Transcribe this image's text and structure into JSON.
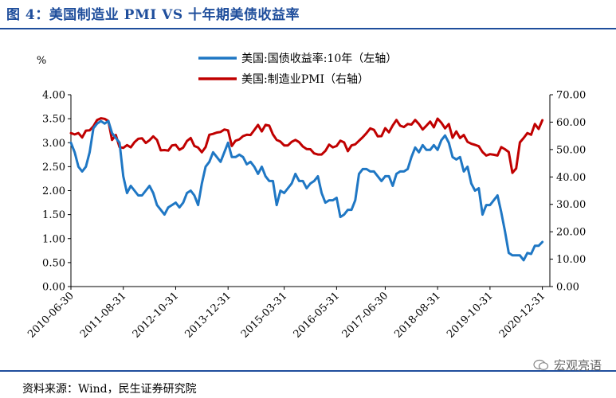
{
  "title": "图 4：美国制造业 PMI VS 十年期美债收益率",
  "source": "资料来源：Wind，民生证券研究院",
  "watermark": "宏观亮语",
  "chart_data": {
    "type": "line",
    "ylabel_left": "%",
    "left_axis": {
      "min": 0,
      "max": 4,
      "ticks": [
        "0.00",
        "0.50",
        "1.00",
        "1.50",
        "2.00",
        "2.50",
        "3.00",
        "3.50",
        "4.00"
      ]
    },
    "right_axis": {
      "min": 0,
      "max": 70,
      "ticks": [
        "0.00",
        "10.00",
        "20.00",
        "30.00",
        "40.00",
        "50.00",
        "60.00",
        "70.00"
      ]
    },
    "x_range": [
      "2010-06",
      "2021-02"
    ],
    "x_ticks": [
      "2010-06-30",
      "2011-08-31",
      "2012-10-31",
      "2013-12-31",
      "2015-03-31",
      "2016-05-31",
      "2017-06-30",
      "2018-08-31",
      "2019-10-31",
      "2020-12-31"
    ],
    "legend_position": "top-center",
    "series": [
      {
        "name": "美国:国债收益率:10年（左轴）",
        "axis": "left",
        "color": "#1f77c4",
        "points": [
          [
            "2010-06",
            3.0
          ],
          [
            "2010-07",
            2.8
          ],
          [
            "2010-08",
            2.5
          ],
          [
            "2010-09",
            2.4
          ],
          [
            "2010-10",
            2.5
          ],
          [
            "2010-11",
            2.8
          ],
          [
            "2010-12",
            3.3
          ],
          [
            "2011-01",
            3.4
          ],
          [
            "2011-02",
            3.45
          ],
          [
            "2011-03",
            3.4
          ],
          [
            "2011-04",
            3.45
          ],
          [
            "2011-05",
            3.2
          ],
          [
            "2011-06",
            3.1
          ],
          [
            "2011-07",
            3.0
          ],
          [
            "2011-08",
            2.3
          ],
          [
            "2011-09",
            1.95
          ],
          [
            "2011-10",
            2.1
          ],
          [
            "2011-11",
            2.0
          ],
          [
            "2011-12",
            1.9
          ],
          [
            "2012-01",
            1.9
          ],
          [
            "2012-02",
            2.0
          ],
          [
            "2012-03",
            2.1
          ],
          [
            "2012-04",
            1.95
          ],
          [
            "2012-05",
            1.7
          ],
          [
            "2012-06",
            1.6
          ],
          [
            "2012-07",
            1.5
          ],
          [
            "2012-08",
            1.65
          ],
          [
            "2012-09",
            1.7
          ],
          [
            "2012-10",
            1.75
          ],
          [
            "2012-11",
            1.65
          ],
          [
            "2012-12",
            1.75
          ],
          [
            "2013-01",
            1.95
          ],
          [
            "2013-02",
            2.0
          ],
          [
            "2013-03",
            1.9
          ],
          [
            "2013-04",
            1.7
          ],
          [
            "2013-05",
            2.15
          ],
          [
            "2013-06",
            2.5
          ],
          [
            "2013-07",
            2.6
          ],
          [
            "2013-08",
            2.8
          ],
          [
            "2013-09",
            2.7
          ],
          [
            "2013-10",
            2.6
          ],
          [
            "2013-11",
            2.8
          ],
          [
            "2013-12",
            3.0
          ],
          [
            "2014-01",
            2.7
          ],
          [
            "2014-02",
            2.7
          ],
          [
            "2014-03",
            2.75
          ],
          [
            "2014-04",
            2.7
          ],
          [
            "2014-05",
            2.55
          ],
          [
            "2014-06",
            2.6
          ],
          [
            "2014-07",
            2.5
          ],
          [
            "2014-08",
            2.35
          ],
          [
            "2014-09",
            2.5
          ],
          [
            "2014-10",
            2.3
          ],
          [
            "2014-11",
            2.2
          ],
          [
            "2014-12",
            2.2
          ],
          [
            "2015-01",
            1.7
          ],
          [
            "2015-02",
            2.0
          ],
          [
            "2015-03",
            1.95
          ],
          [
            "2015-04",
            2.05
          ],
          [
            "2015-05",
            2.15
          ],
          [
            "2015-06",
            2.35
          ],
          [
            "2015-07",
            2.2
          ],
          [
            "2015-08",
            2.2
          ],
          [
            "2015-09",
            2.05
          ],
          [
            "2015-10",
            2.15
          ],
          [
            "2015-11",
            2.2
          ],
          [
            "2015-12",
            2.3
          ],
          [
            "2016-01",
            1.95
          ],
          [
            "2016-02",
            1.75
          ],
          [
            "2016-03",
            1.8
          ],
          [
            "2016-04",
            1.8
          ],
          [
            "2016-05",
            1.85
          ],
          [
            "2016-06",
            1.45
          ],
          [
            "2016-07",
            1.5
          ],
          [
            "2016-08",
            1.6
          ],
          [
            "2016-09",
            1.6
          ],
          [
            "2016-10",
            1.8
          ],
          [
            "2016-11",
            2.35
          ],
          [
            "2016-12",
            2.45
          ],
          [
            "2017-01",
            2.45
          ],
          [
            "2017-02",
            2.4
          ],
          [
            "2017-03",
            2.4
          ],
          [
            "2017-04",
            2.3
          ],
          [
            "2017-05",
            2.2
          ],
          [
            "2017-06",
            2.3
          ],
          [
            "2017-07",
            2.3
          ],
          [
            "2017-08",
            2.1
          ],
          [
            "2017-09",
            2.35
          ],
          [
            "2017-10",
            2.4
          ],
          [
            "2017-11",
            2.4
          ],
          [
            "2017-12",
            2.45
          ],
          [
            "2018-01",
            2.7
          ],
          [
            "2018-02",
            2.9
          ],
          [
            "2018-03",
            2.8
          ],
          [
            "2018-04",
            2.95
          ],
          [
            "2018-05",
            2.85
          ],
          [
            "2018-06",
            2.85
          ],
          [
            "2018-07",
            2.95
          ],
          [
            "2018-08",
            2.85
          ],
          [
            "2018-09",
            3.05
          ],
          [
            "2018-10",
            3.15
          ],
          [
            "2018-11",
            3.0
          ],
          [
            "2018-12",
            2.7
          ],
          [
            "2019-01",
            2.65
          ],
          [
            "2019-02",
            2.7
          ],
          [
            "2019-03",
            2.4
          ],
          [
            "2019-04",
            2.5
          ],
          [
            "2019-05",
            2.15
          ],
          [
            "2019-06",
            2.0
          ],
          [
            "2019-07",
            2.05
          ],
          [
            "2019-08",
            1.5
          ],
          [
            "2019-09",
            1.7
          ],
          [
            "2019-10",
            1.7
          ],
          [
            "2019-11",
            1.8
          ],
          [
            "2019-12",
            1.9
          ],
          [
            "2020-01",
            1.55
          ],
          [
            "2020-02",
            1.15
          ],
          [
            "2020-03",
            0.7
          ],
          [
            "2020-04",
            0.65
          ],
          [
            "2020-05",
            0.65
          ],
          [
            "2020-06",
            0.65
          ],
          [
            "2020-07",
            0.55
          ],
          [
            "2020-08",
            0.7
          ],
          [
            "2020-09",
            0.68
          ],
          [
            "2020-10",
            0.85
          ],
          [
            "2020-11",
            0.85
          ],
          [
            "2020-12",
            0.93
          ]
        ]
      },
      {
        "name": "美国:制造业PMI（右轴）",
        "axis": "right",
        "color": "#c00000",
        "points": [
          [
            "2010-06",
            56
          ],
          [
            "2010-07",
            55.5
          ],
          [
            "2010-08",
            56
          ],
          [
            "2010-09",
            54.4
          ],
          [
            "2010-10",
            56.9
          ],
          [
            "2010-11",
            57
          ],
          [
            "2010-12",
            58.5
          ],
          [
            "2011-01",
            60.8
          ],
          [
            "2011-02",
            61.4
          ],
          [
            "2011-03",
            61.2
          ],
          [
            "2011-04",
            60.4
          ],
          [
            "2011-05",
            53.5
          ],
          [
            "2011-06",
            55.3
          ],
          [
            "2011-07",
            50.9
          ],
          [
            "2011-08",
            50.6
          ],
          [
            "2011-09",
            51.6
          ],
          [
            "2011-10",
            50.8
          ],
          [
            "2011-11",
            52.7
          ],
          [
            "2011-12",
            53.9
          ],
          [
            "2012-01",
            54.1
          ],
          [
            "2012-02",
            52.4
          ],
          [
            "2012-03",
            53.4
          ],
          [
            "2012-04",
            54.8
          ],
          [
            "2012-05",
            53.5
          ],
          [
            "2012-06",
            49.7
          ],
          [
            "2012-07",
            49.8
          ],
          [
            "2012-08",
            49.6
          ],
          [
            "2012-09",
            51.5
          ],
          [
            "2012-10",
            51.7
          ],
          [
            "2012-11",
            49.9
          ],
          [
            "2012-12",
            50.7
          ],
          [
            "2013-01",
            53.1
          ],
          [
            "2013-02",
            54.2
          ],
          [
            "2013-03",
            51.3
          ],
          [
            "2013-04",
            50.7
          ],
          [
            "2013-05",
            49
          ],
          [
            "2013-06",
            50.9
          ],
          [
            "2013-07",
            55.4
          ],
          [
            "2013-08",
            55.7
          ],
          [
            "2013-09",
            56.2
          ],
          [
            "2013-10",
            56.4
          ],
          [
            "2013-11",
            57.3
          ],
          [
            "2013-12",
            57
          ],
          [
            "2014-01",
            51.3
          ],
          [
            "2014-02",
            53.2
          ],
          [
            "2014-03",
            53.7
          ],
          [
            "2014-04",
            54.9
          ],
          [
            "2014-05",
            55.4
          ],
          [
            "2014-06",
            55.3
          ],
          [
            "2014-07",
            57.1
          ],
          [
            "2014-08",
            59
          ],
          [
            "2014-09",
            56.6
          ],
          [
            "2014-10",
            59
          ],
          [
            "2014-11",
            58.7
          ],
          [
            "2014-12",
            55.5
          ],
          [
            "2015-01",
            53.5
          ],
          [
            "2015-02",
            52.9
          ],
          [
            "2015-03",
            51.5
          ],
          [
            "2015-04",
            51.5
          ],
          [
            "2015-05",
            52.8
          ],
          [
            "2015-06",
            53.5
          ],
          [
            "2015-07",
            52.7
          ],
          [
            "2015-08",
            51.1
          ],
          [
            "2015-09",
            50.2
          ],
          [
            "2015-10",
            50.1
          ],
          [
            "2015-11",
            48.6
          ],
          [
            "2015-12",
            48.2
          ],
          [
            "2016-01",
            48.2
          ],
          [
            "2016-02",
            49.5
          ],
          [
            "2016-03",
            51.8
          ],
          [
            "2016-04",
            50.8
          ],
          [
            "2016-05",
            51.3
          ],
          [
            "2016-06",
            53.2
          ],
          [
            "2016-07",
            52.6
          ],
          [
            "2016-08",
            49.4
          ],
          [
            "2016-09",
            51.5
          ],
          [
            "2016-10",
            51.9
          ],
          [
            "2016-11",
            53.2
          ],
          [
            "2016-12",
            54.5
          ],
          [
            "2017-01",
            56
          ],
          [
            "2017-02",
            57.7
          ],
          [
            "2017-03",
            57.2
          ],
          [
            "2017-04",
            54.8
          ],
          [
            "2017-05",
            54.9
          ],
          [
            "2017-06",
            57.8
          ],
          [
            "2017-07",
            56.3
          ],
          [
            "2017-08",
            58.8
          ],
          [
            "2017-09",
            60.8
          ],
          [
            "2017-10",
            58.7
          ],
          [
            "2017-11",
            58.2
          ],
          [
            "2017-12",
            59.3
          ],
          [
            "2018-01",
            59.1
          ],
          [
            "2018-02",
            60.8
          ],
          [
            "2018-03",
            59.3
          ],
          [
            "2018-04",
            57.3
          ],
          [
            "2018-05",
            58.7
          ],
          [
            "2018-06",
            60.2
          ],
          [
            "2018-07",
            58.1
          ],
          [
            "2018-08",
            61.3
          ],
          [
            "2018-09",
            59.8
          ],
          [
            "2018-10",
            57.7
          ],
          [
            "2018-11",
            59.3
          ],
          [
            "2018-12",
            54.3
          ],
          [
            "2019-01",
            56.6
          ],
          [
            "2019-02",
            54.2
          ],
          [
            "2019-03",
            55.3
          ],
          [
            "2019-04",
            52.8
          ],
          [
            "2019-05",
            52.1
          ],
          [
            "2019-06",
            51.7
          ],
          [
            "2019-07",
            51.2
          ],
          [
            "2019-08",
            49.1
          ],
          [
            "2019-09",
            47.8
          ],
          [
            "2019-10",
            48.3
          ],
          [
            "2019-11",
            48.1
          ],
          [
            "2019-12",
            47.8
          ],
          [
            "2020-01",
            50.9
          ],
          [
            "2020-02",
            50.1
          ],
          [
            "2020-03",
            49.1
          ],
          [
            "2020-04",
            41.5
          ],
          [
            "2020-05",
            43.1
          ],
          [
            "2020-06",
            52.6
          ],
          [
            "2020-07",
            54.2
          ],
          [
            "2020-08",
            56
          ],
          [
            "2020-09",
            55.4
          ],
          [
            "2020-10",
            59.3
          ],
          [
            "2020-11",
            57.5
          ],
          [
            "2020-12",
            60.7
          ]
        ]
      }
    ]
  }
}
